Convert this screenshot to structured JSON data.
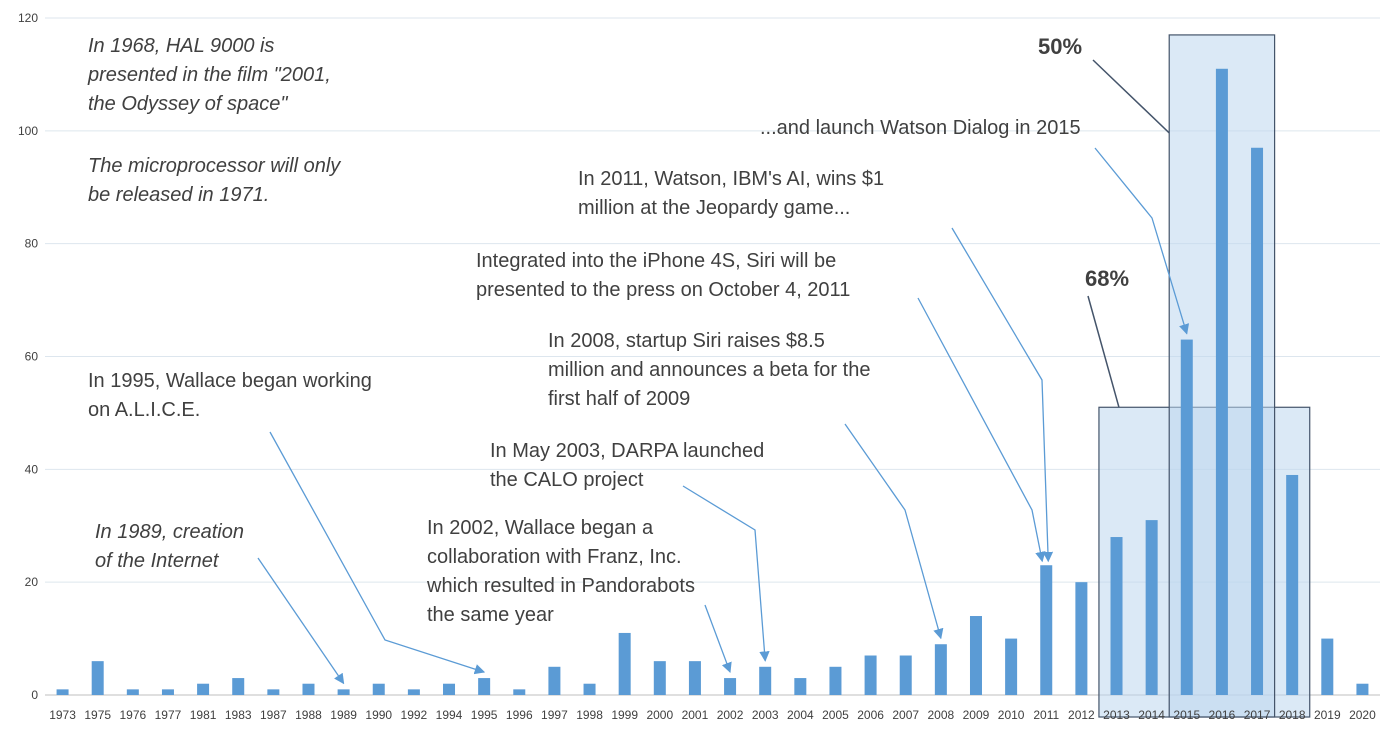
{
  "chart_data": {
    "type": "bar",
    "categories": [
      "1973",
      "1975",
      "1976",
      "1977",
      "1981",
      "1983",
      "1987",
      "1988",
      "1989",
      "1990",
      "1992",
      "1994",
      "1995",
      "1996",
      "1997",
      "1998",
      "1999",
      "2000",
      "2001",
      "2002",
      "2003",
      "2004",
      "2005",
      "2006",
      "2007",
      "2008",
      "2009",
      "2010",
      "2011",
      "2012",
      "2013",
      "2014",
      "2015",
      "2016",
      "2017",
      "2018",
      "2019",
      "2020"
    ],
    "values": [
      1,
      6,
      1,
      1,
      2,
      3,
      1,
      2,
      1,
      2,
      1,
      2,
      3,
      1,
      5,
      2,
      11,
      6,
      6,
      3,
      5,
      3,
      5,
      7,
      7,
      9,
      14,
      10,
      23,
      20,
      28,
      31,
      63,
      111,
      97,
      39,
      10,
      2
    ],
    "ylim": [
      0,
      120
    ],
    "yticks": [
      0,
      20,
      40,
      60,
      80,
      100,
      120
    ],
    "grid": true,
    "bar_color": "#5b9bd5",
    "highlight_color": "#bdd7ee",
    "highlights": [
      {
        "label": "68%",
        "from": "2013",
        "to": "2018",
        "top": 51
      },
      {
        "label": "50%",
        "from": "2015",
        "to": "2017",
        "top": 117
      }
    ],
    "annotations": [
      {
        "lines": [
          "In 1968, HAL 9000 is",
          "presented in the film \"2001,",
          "the Odyssey of space\""
        ],
        "italic": true
      },
      {
        "lines": [
          "The microprocessor will only",
          "be released in 1971."
        ],
        "italic": true
      },
      {
        "lines": [
          "In 1989, creation",
          "of the Internet"
        ],
        "italic": true,
        "target": "1989"
      },
      {
        "lines": [
          "In 1995, Wallace began working",
          "on A.L.I.C.E."
        ],
        "target": "1995"
      },
      {
        "lines": [
          "In 2002, Wallace began a",
          "collaboration with Franz, Inc.",
          "which resulted in Pandorabots",
          "the same year"
        ],
        "target": "2002"
      },
      {
        "lines": [
          "In May 2003, DARPA launched",
          "the CALO project"
        ],
        "target": "2003"
      },
      {
        "lines": [
          "In 2008, startup Siri raises $8.5",
          "million and announces a beta for the",
          "first half of 2009"
        ],
        "target": "2008"
      },
      {
        "lines": [
          "Integrated into the iPhone 4S, Siri will be",
          "presented to the press on October 4, 2011"
        ],
        "target": "2011"
      },
      {
        "lines": [
          "In 2011, Watson, IBM's AI, wins $1",
          "million at the Jeopardy game..."
        ],
        "target": "2011"
      },
      {
        "lines": [
          "...and launch Watson Dialog in 2015"
        ],
        "target": "2015"
      }
    ]
  }
}
